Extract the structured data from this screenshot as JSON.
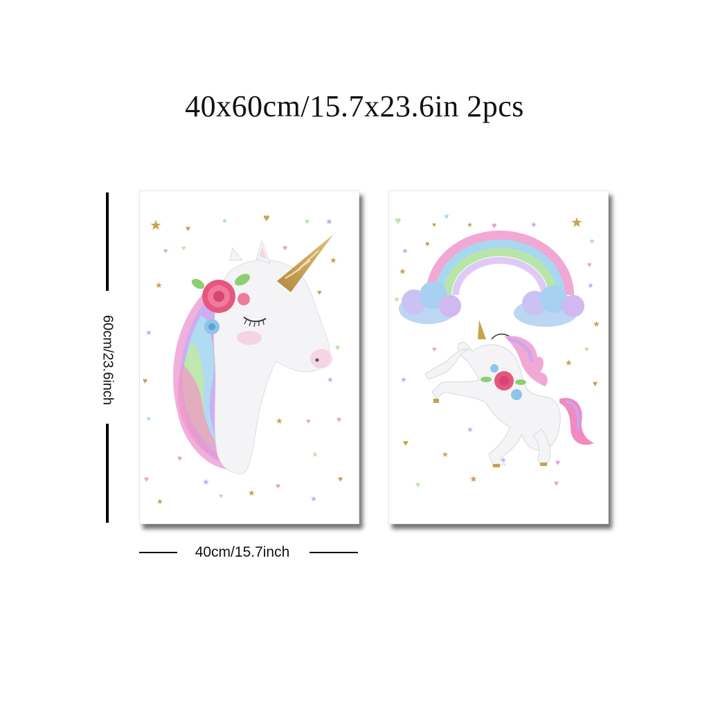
{
  "title": "40x60cm/15.7x23.6in 2pcs",
  "dimensions": {
    "height_label": "60cm/23.6inch",
    "width_label": "40cm/15.7inch"
  },
  "posters": [
    {
      "subject": "unicorn-head"
    },
    {
      "subject": "unicorn-rainbow"
    }
  ],
  "colors": {
    "gold": "#c9a24a",
    "pink": "#f08ac0",
    "lilac": "#c9a6f0",
    "mint": "#b8e6a8",
    "sky": "#a8d8f0",
    "rose": "#e6567f"
  }
}
